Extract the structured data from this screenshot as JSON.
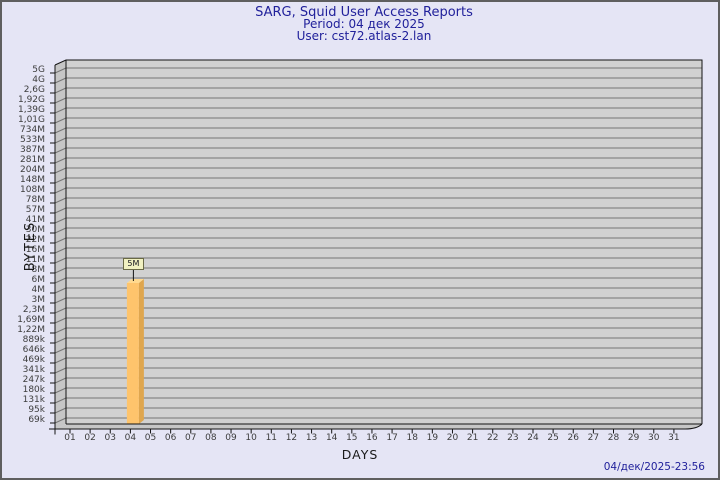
{
  "header": {
    "title": "SARG, Squid User Access Reports",
    "period": "Period: 04 дек 2025",
    "user": "User: cst72.atlas-2.lan"
  },
  "footer": {
    "timestamp": "04/дек/2025-23:56"
  },
  "chart_data": {
    "type": "bar",
    "title": "SARG, Squid User Access Reports",
    "subtitle_lines": [
      "Period: 04 дек 2025",
      "User: cst72.atlas-2.lan"
    ],
    "xlabel": "DAYS",
    "ylabel": "BYTES",
    "x_categories": [
      "01",
      "02",
      "03",
      "04",
      "05",
      "06",
      "07",
      "08",
      "09",
      "10",
      "11",
      "12",
      "13",
      "14",
      "15",
      "16",
      "17",
      "18",
      "19",
      "20",
      "21",
      "22",
      "23",
      "24",
      "25",
      "26",
      "27",
      "28",
      "29",
      "30",
      "31"
    ],
    "y_tick_labels": [
      "5G",
      "4G",
      "2,6G",
      "1,92G",
      "1,39G",
      "1,01G",
      "734M",
      "533M",
      "387M",
      "281M",
      "204M",
      "148M",
      "108M",
      "78M",
      "57M",
      "41M",
      "30M",
      "22M",
      "16M",
      "11M",
      "8M",
      "6M",
      "4M",
      "3M",
      "2,3M",
      "1,69M",
      "1,22M",
      "889k",
      "646k",
      "469k",
      "341k",
      "247k",
      "180k",
      "131k",
      "95k",
      "69k"
    ],
    "y_scale": "logarithmic",
    "grid": true,
    "legend": null,
    "bars": [
      {
        "day": "04",
        "value_label": "5M",
        "approx_bytes": 5000000
      }
    ]
  },
  "colors": {
    "background": "#E5E5F5",
    "frame_border": "#5f5f5f",
    "title_text": "#21219B",
    "plot_bg": "#D1D1D1",
    "wall_bg": "#C6C6C6",
    "gridline": "#757575",
    "axis": "#141414",
    "tick_text": "#3d3d3d",
    "bar_front": "#FEC46C",
    "bar_side": "#DFA64E",
    "bar_top": "#FFD98F",
    "value_box_bg": "#F1F1C1",
    "value_box_border": "#6a6a46",
    "timestamp_text": "#21219B"
  }
}
